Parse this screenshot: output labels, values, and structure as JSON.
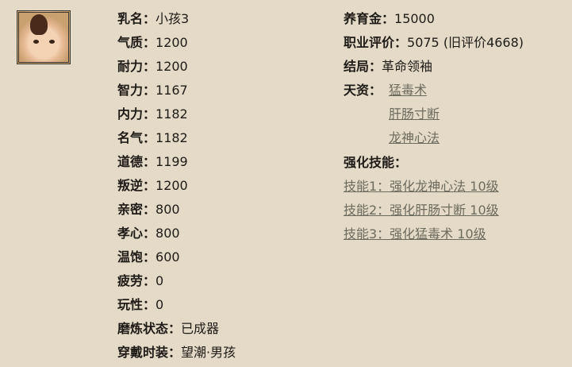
{
  "left_stats": [
    {
      "label": "乳名：",
      "value": "小孩3"
    },
    {
      "label": "气质：",
      "value": "1200"
    },
    {
      "label": "耐力：",
      "value": "1200"
    },
    {
      "label": "智力：",
      "value": "1167"
    },
    {
      "label": "内力：",
      "value": "1182"
    },
    {
      "label": "名气：",
      "value": "1182"
    },
    {
      "label": "道德：",
      "value": "1199"
    },
    {
      "label": "叛逆：",
      "value": "1200"
    },
    {
      "label": "亲密：",
      "value": "800"
    },
    {
      "label": "孝心：",
      "value": "800"
    },
    {
      "label": "温饱：",
      "value": "600"
    },
    {
      "label": "疲劳：",
      "value": "0"
    },
    {
      "label": "玩性：",
      "value": "0"
    },
    {
      "label": "磨炼状态：",
      "value": "已成器"
    },
    {
      "label": "穿戴时装：",
      "value": "望潮·男孩"
    }
  ],
  "right": {
    "funds": {
      "label": "养育金：",
      "value": "15000"
    },
    "rating": {
      "label": "职业评价：",
      "value": "5075 (旧评价4668)"
    },
    "ending": {
      "label": "结局：",
      "value": "革命领袖"
    },
    "talent_label": "天资：",
    "talents": [
      "猛毒术",
      "肝肠寸断",
      "龙神心法"
    ],
    "skills_label": "强化技能：",
    "skills": [
      "技能1：强化龙神心法 10级",
      "技能2：强化肝肠寸断 10级",
      "技能3：强化猛毒术 10级"
    ]
  }
}
